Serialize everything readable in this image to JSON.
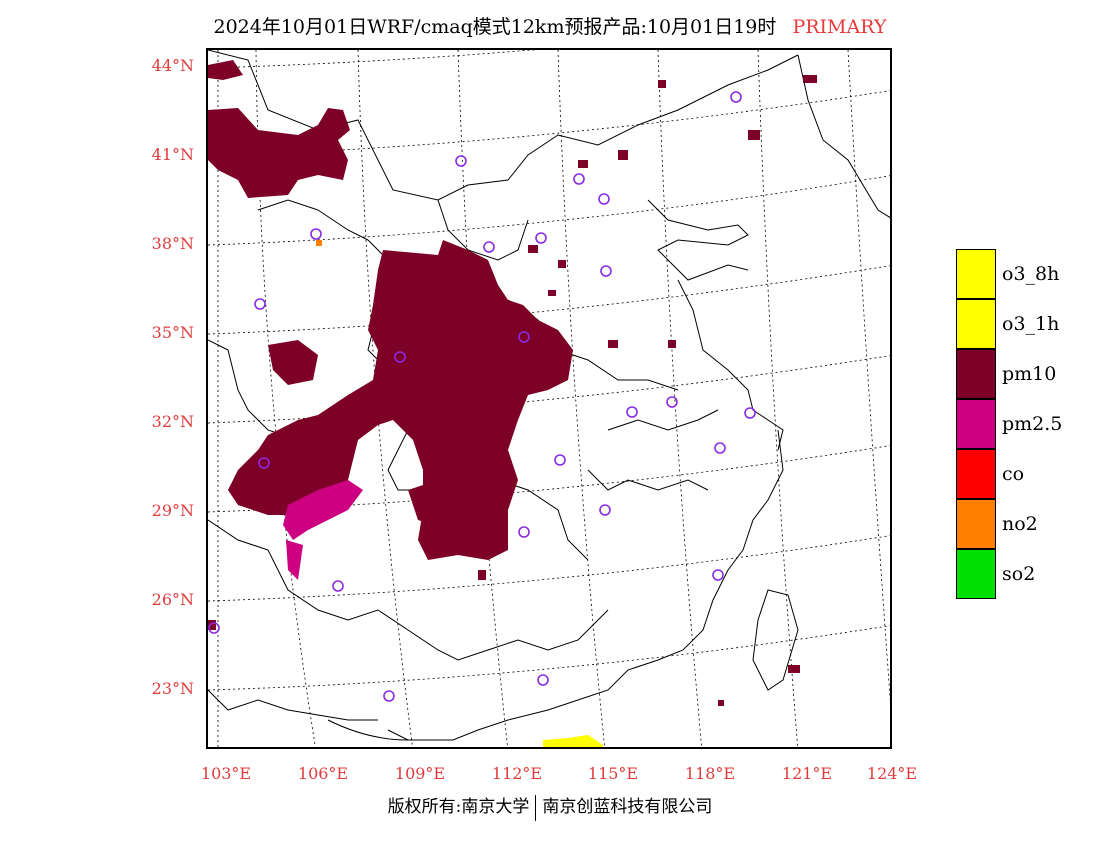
{
  "title": {
    "main": "2024年10月01日WRF/cmaq模式12km预报产品:10月01日19时",
    "tag": "PRIMARY"
  },
  "lat_labels": [
    "44°N",
    "41°N",
    "38°N",
    "35°N",
    "32°N",
    "29°N",
    "26°N",
    "23°N"
  ],
  "lon_labels": [
    "103°E",
    "106°E",
    "109°E",
    "112°E",
    "115°E",
    "118°E",
    "121°E",
    "124°E"
  ],
  "legend": [
    {
      "label": "o3_8h",
      "color": "#ffff00"
    },
    {
      "label": "o3_1h",
      "color": "#ffff00"
    },
    {
      "label": "pm10",
      "color": "#7d0027"
    },
    {
      "label": "pm2.5",
      "color": "#cc0080"
    },
    {
      "label": "co",
      "color": "#ff0000"
    },
    {
      "label": "no2",
      "color": "#ff7f00"
    },
    {
      "label": "so2",
      "color": "#00e000"
    }
  ],
  "footer": {
    "left": "版权所有:南京大学",
    "right": "南京创蓝科技有限公司"
  },
  "colors": {
    "pm10": "#7d0027",
    "pm25": "#cc0080",
    "o3": "#ffff00",
    "no2": "#ff7f00",
    "station": "#8a2be2",
    "axis_label": "#e03c3c"
  }
}
